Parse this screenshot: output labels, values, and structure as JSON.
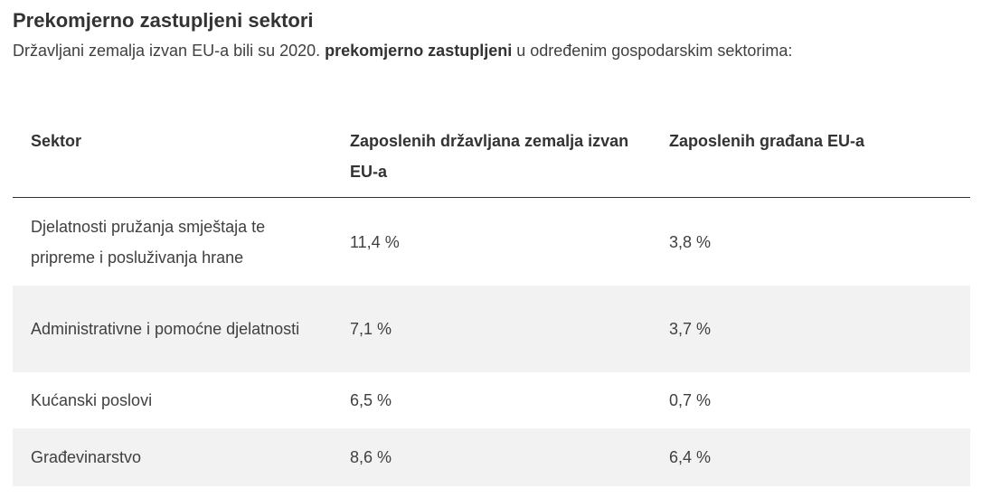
{
  "title": "Prekomjerno zastupljeni sektori",
  "intro": {
    "before": "Državljani zemalja izvan EU-a bili su 2020. ",
    "bold": "prekomjerno zastupljeni",
    "after": " u određenim gospodarskim sektorima:"
  },
  "table": {
    "headers": [
      "Sektor",
      "Zaposlenih državljana zemalja izvan EU-a",
      "Zaposlenih građana EU-a"
    ],
    "rows": [
      {
        "sector": "Djelatnosti pružanja smještaja te pripreme i posluživanja hrane",
        "non_eu": "11,4 %",
        "eu": "3,8 %"
      },
      {
        "sector": "Administrativne i pomoćne djelatnosti",
        "non_eu": "7,1 %",
        "eu": "3,7 %"
      },
      {
        "sector": "Kućanski poslovi",
        "non_eu": "6,5 %",
        "eu": "0,7 %"
      },
      {
        "sector": "Građevinarstvo",
        "non_eu": "8,6 %",
        "eu": "6,4 %"
      }
    ]
  }
}
